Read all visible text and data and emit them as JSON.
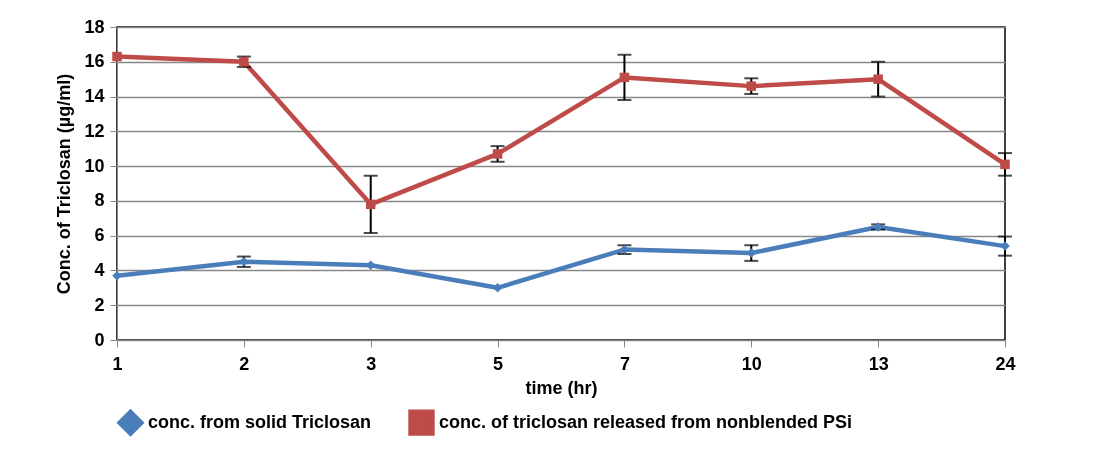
{
  "chart_data": {
    "type": "line",
    "xlabel": "time (hr)",
    "ylabel": "Conc. of Triclosan (µg/ml)",
    "categories": [
      "1",
      "2",
      "3",
      "5",
      "7",
      "10",
      "13",
      "24"
    ],
    "ylim": [
      0,
      18
    ],
    "yticks": [
      0,
      2,
      4,
      6,
      8,
      10,
      12,
      14,
      16,
      18
    ],
    "grid": "y",
    "legend": "bottom",
    "series": [
      {
        "name": "conc. from solid Triclosan",
        "color": "#4a7ebb",
        "marker": "diamond",
        "values": [
          3.7,
          4.5,
          4.3,
          3.0,
          5.2,
          5.0,
          6.5,
          5.4
        ],
        "errors": [
          null,
          0.3,
          null,
          null,
          0.25,
          0.45,
          0.15,
          0.55
        ]
      },
      {
        "name": "conc. of triclosan released from nonblended PSi",
        "color": "#be4b48",
        "marker": "square",
        "values": [
          16.3,
          16.0,
          7.8,
          10.7,
          15.1,
          14.6,
          15.0,
          10.1
        ],
        "errors": [
          null,
          0.3,
          1.65,
          0.45,
          1.3,
          0.45,
          1.0,
          0.65
        ]
      }
    ]
  }
}
